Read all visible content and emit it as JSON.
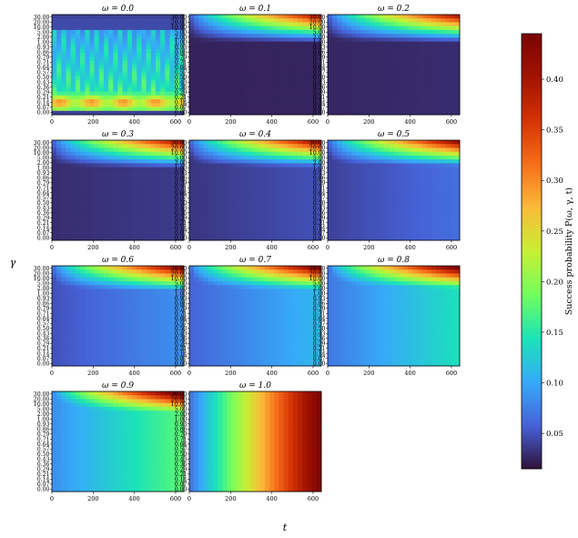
{
  "chart_data": {
    "type": "heatmap",
    "xlabel": "t",
    "ylabel": "γ",
    "colorbar_label": "Success probability P(ω, γ, t)",
    "colorbar_ticks": [
      "0.05",
      "0.10",
      "0.15",
      "0.20",
      "0.25",
      "0.30",
      "0.35",
      "0.40"
    ],
    "colorbar_range": [
      0.015,
      0.445
    ],
    "colormap": "turbo",
    "x_ticks": [
      "0",
      "200",
      "400",
      "600"
    ],
    "x_range": [
      0,
      640
    ],
    "y_ticks": [
      "0.00",
      "0.07",
      "0.14",
      "0.21",
      "0.29",
      "0.36",
      "0.43",
      "0.50",
      "0.57",
      "0.64",
      "0.71",
      "0.79",
      "0.86",
      "0.93",
      "1.00",
      "2.00",
      "5.00",
      "10.00",
      "20.00",
      "30.00"
    ],
    "panels": [
      {
        "title": "ω = 0.0",
        "omega": 0.0
      },
      {
        "title": "ω = 0.1",
        "omega": 0.1
      },
      {
        "title": "ω = 0.2",
        "omega": 0.2
      },
      {
        "title": "ω = 0.3",
        "omega": 0.3
      },
      {
        "title": "ω = 0.4",
        "omega": 0.4
      },
      {
        "title": "ω = 0.5",
        "omega": 0.5
      },
      {
        "title": "ω = 0.6",
        "omega": 0.6
      },
      {
        "title": "ω = 0.7",
        "omega": 0.7
      },
      {
        "title": "ω = 0.8",
        "omega": 0.8
      },
      {
        "title": "ω = 0.9",
        "omega": 0.9
      },
      {
        "title": "ω = 1.0",
        "omega": 1.0
      }
    ]
  }
}
